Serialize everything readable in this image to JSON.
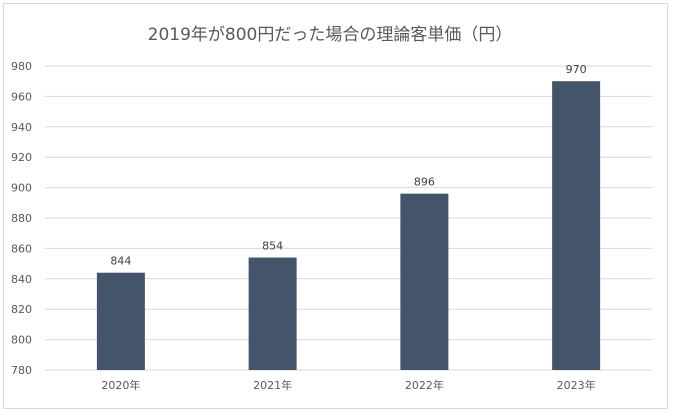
{
  "chart_data": {
    "type": "bar",
    "title": "2019年が800円だった場合の理論客単価（円）",
    "categories": [
      "2020年",
      "2021年",
      "2022年",
      "2023年"
    ],
    "values": [
      844,
      854,
      896,
      970
    ],
    "data_labels": [
      "844",
      "854",
      "896",
      "970"
    ],
    "xlabel": "",
    "ylabel": "",
    "ylim": [
      780,
      980
    ],
    "yticks": [
      "780",
      "800",
      "820",
      "840",
      "860",
      "880",
      "900",
      "920",
      "940",
      "960",
      "980"
    ],
    "grid": true,
    "legend": "none",
    "colors": {
      "bar": "#44546a",
      "grid": "#d9d9d9",
      "text": "#595959"
    }
  }
}
